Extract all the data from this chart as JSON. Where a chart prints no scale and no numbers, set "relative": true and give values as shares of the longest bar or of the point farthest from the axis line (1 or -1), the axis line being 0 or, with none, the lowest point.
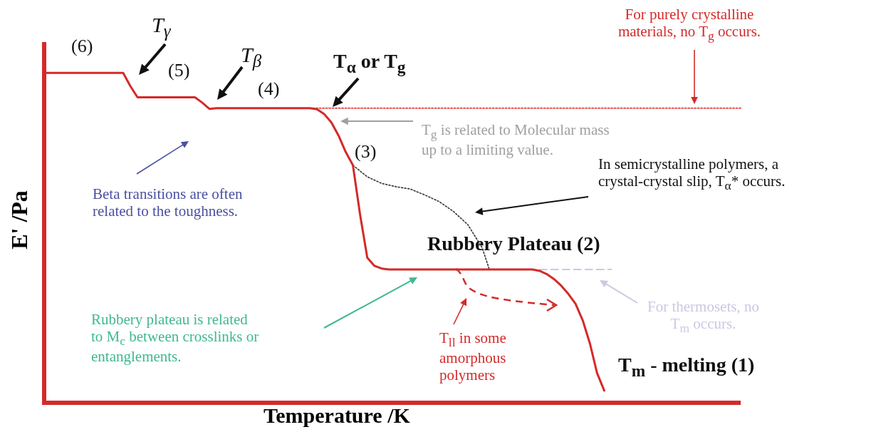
{
  "chart_data": {
    "type": "line",
    "relative": true,
    "xlabel": "Temperature /K",
    "ylabel": "E' /Pa",
    "marker": "none",
    "categories": [
      null,
      null,
      null,
      null,
      null,
      null,
      null,
      null,
      null,
      null,
      null,
      null,
      null,
      null,
      null,
      null,
      null,
      null,
      null,
      null,
      null,
      null,
      null,
      null,
      null,
      null,
      null,
      null,
      null,
      null,
      null,
      null,
      null,
      null,
      null,
      null,
      null,
      null,
      null,
      null,
      null,
      null,
      null,
      null,
      null,
      null,
      null,
      null,
      null,
      null,
      null,
      null,
      null,
      null,
      null,
      null,
      null,
      null,
      null,
      null,
      null,
      null,
      null,
      null,
      null,
      null,
      null,
      null,
      null,
      null,
      null,
      null,
      null,
      null,
      null,
      null,
      null,
      null,
      null,
      null,
      null,
      null,
      null,
      null,
      null,
      null,
      null,
      null,
      null,
      null,
      null,
      null,
      null,
      null,
      null,
      null,
      null,
      null
    ],
    "series": [
      {
        "color": "#d42a2a",
        "line_style": "solid",
        "values": [
          1,
          1,
          1,
          1,
          1,
          1,
          1,
          1,
          1,
          1,
          1,
          1,
          0.96,
          0.926,
          0.926,
          0.926,
          0.926,
          0.926,
          0.926,
          0.926,
          0.926,
          0.926,
          0.91,
          0.891,
          0.893,
          0.893,
          0.893,
          0.893,
          0.893,
          0.893,
          0.893,
          0.893,
          0.893,
          0.893,
          0.893,
          0.893,
          0.893,
          0.893,
          0.89,
          0.875,
          0.85,
          0.81,
          0.76,
          0.72,
          0.57,
          0.44,
          0.415,
          0.407,
          0.404,
          0.404,
          0.404,
          0.404,
          0.404,
          0.404,
          0.404,
          0.404,
          0.404,
          0.404,
          0.404,
          0.404,
          0.404,
          0.404,
          0.404,
          0.404,
          0.404,
          0.404,
          0.404,
          0.404,
          0.404,
          0.4,
          0.39,
          0.375,
          0.355,
          0.33,
          0.3,
          0.25,
          0.18,
          0.09,
          0.037,
          null,
          null,
          null,
          null,
          null,
          null,
          null,
          null,
          null,
          null,
          null,
          null,
          null,
          null,
          null,
          null,
          null,
          null,
          null
        ]
      },
      {
        "color": "#333333",
        "line_style": "dotted",
        "values": [
          null,
          null,
          null,
          null,
          null,
          null,
          null,
          null,
          null,
          null,
          null,
          null,
          null,
          null,
          null,
          null,
          null,
          null,
          null,
          null,
          null,
          null,
          null,
          null,
          null,
          null,
          null,
          null,
          null,
          null,
          null,
          null,
          null,
          null,
          null,
          null,
          null,
          null,
          null,
          null,
          null,
          null,
          null,
          0.72,
          null,
          0.685,
          null,
          0.665,
          null,
          0.655,
          null,
          0.648,
          null,
          0.63,
          null,
          0.61,
          null,
          0.58,
          null,
          0.54,
          null,
          0.47,
          0.404,
          null,
          null,
          null,
          null,
          null,
          null,
          null,
          null,
          null,
          null,
          null,
          null,
          null,
          null,
          null,
          null,
          null,
          null,
          null,
          null,
          null,
          null,
          null,
          null,
          null,
          null,
          null,
          null,
          null,
          null,
          null,
          null,
          null,
          null,
          null
        ]
      },
      {
        "color": "#c9c9e3",
        "line_style": "dashed",
        "values": [
          null,
          null,
          null,
          null,
          null,
          null,
          null,
          null,
          null,
          null,
          null,
          null,
          null,
          null,
          null,
          null,
          null,
          null,
          null,
          null,
          null,
          null,
          null,
          null,
          null,
          null,
          null,
          null,
          null,
          null,
          null,
          null,
          null,
          null,
          null,
          null,
          null,
          null,
          null,
          null,
          null,
          null,
          null,
          null,
          null,
          null,
          null,
          null,
          null,
          null,
          null,
          null,
          null,
          null,
          null,
          null,
          null,
          null,
          null,
          null,
          null,
          null,
          null,
          null,
          null,
          null,
          null,
          null,
          null,
          0.404,
          0.404,
          0.404,
          0.404,
          0.404,
          0.404,
          0.404,
          0.404,
          0.404,
          0.404,
          0.404,
          null,
          null,
          null,
          null,
          null,
          null,
          null,
          null,
          null,
          null,
          null,
          null,
          null,
          null,
          null,
          null,
          null,
          null
        ]
      },
      {
        "color": "#e05050",
        "line_style": "dotted",
        "values": [
          null,
          null,
          null,
          null,
          null,
          null,
          null,
          null,
          null,
          null,
          null,
          null,
          null,
          null,
          null,
          null,
          null,
          null,
          null,
          null,
          null,
          null,
          null,
          null,
          null,
          null,
          null,
          null,
          null,
          null,
          null,
          null,
          null,
          null,
          null,
          null,
          null,
          0.893,
          0.893,
          0.893,
          0.893,
          0.893,
          0.893,
          0.893,
          0.893,
          0.893,
          0.893,
          0.893,
          0.893,
          0.893,
          0.893,
          0.893,
          0.893,
          0.893,
          0.893,
          0.893,
          0.893,
          0.893,
          0.893,
          0.893,
          0.893,
          0.893,
          0.893,
          0.893,
          0.893,
          0.893,
          0.893,
          0.893,
          0.893,
          0.893,
          0.893,
          0.893,
          0.893,
          0.893,
          0.893,
          0.893,
          0.893,
          0.893,
          0.893,
          0.893,
          0.893,
          0.893,
          0.893,
          0.893,
          0.893,
          0.893,
          0.893,
          0.893,
          0.893,
          0.893,
          0.893,
          0.893,
          0.893,
          0.893,
          0.893,
          0.893,
          0.893,
          0.893
        ]
      }
    ],
    "ref_lines": [
      {
        "axis": "y",
        "value": 0,
        "color": "#d42a2a"
      }
    ],
    "annotations": [
      "(6)",
      "T$_{γ}$",
      "(5)",
      "T$_{β}$",
      "(4)",
      "T$_{α}$ or T$_{g}$",
      "(3)",
      "Rubbery Plateau (2)",
      "T$_{m}$ - melting (1)",
      "For purely crystalline materials,  no T$_{g}$ occurs.",
      "T$_{g}$ is related to Molecular mass up to a limiting value.",
      "In semicrystalline polymers, a crystal-crystal slip, T$_{α}$* occurs.",
      "Beta transitions are often related to the toughness.",
      "Rubbery plateau is related to M$_{c}$ between crosslinks or entanglements.",
      "T$_{ll}$ in some amorphous polymers",
      "For thermosets, no T$_{m}$ occurs."
    ]
  }
}
